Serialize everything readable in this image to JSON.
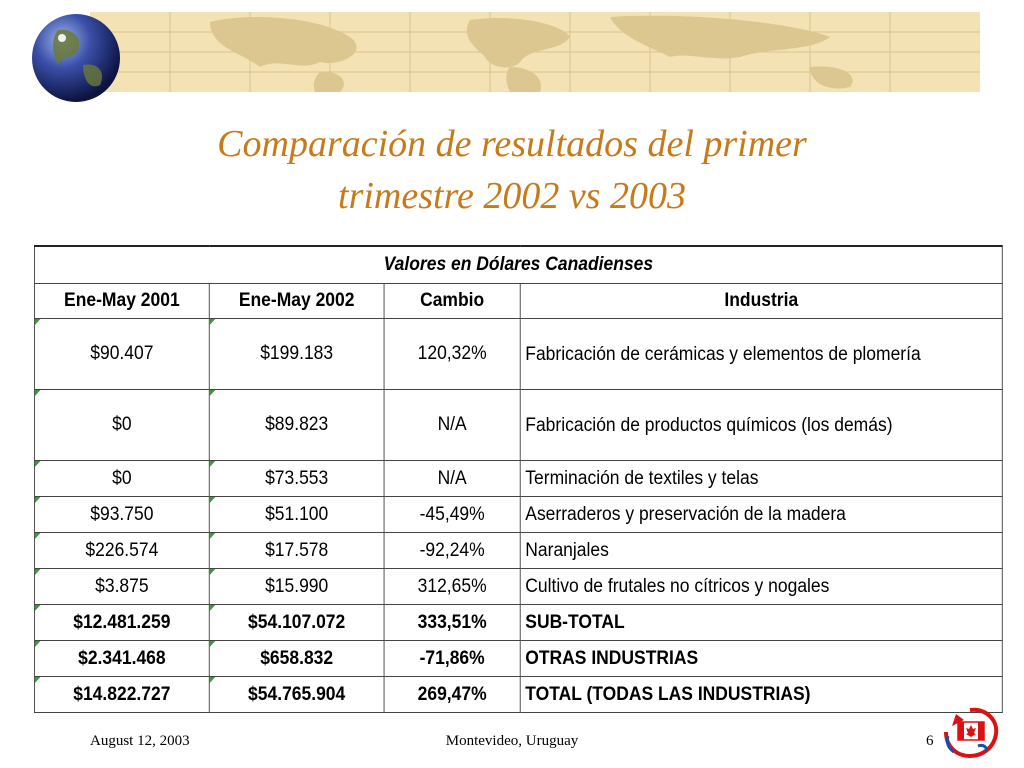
{
  "slide": {
    "title_line1": "Comparación de resultados del primer",
    "title_line2": "trimestre 2002 vs 2003",
    "accent_color": "#c77a1a"
  },
  "table": {
    "caption": "Valores en Dólares Canadienses",
    "headers": [
      "Ene-May 2001",
      "Ene-May 2002",
      "Cambio",
      "Industria"
    ],
    "rows": [
      [
        "$90.407",
        "$199.183",
        "120,32%",
        "Fabricación de cerámicas y elementos de plomería"
      ],
      [
        "$0",
        "$89.823",
        "N/A",
        "Fabricación de productos químicos (los demás)"
      ],
      [
        "$0",
        "$73.553",
        "N/A",
        "Terminación de textiles y telas"
      ],
      [
        "$93.750",
        "$51.100",
        "-45,49%",
        "Aserraderos y preservación de la madera"
      ],
      [
        "$226.574",
        "$17.578",
        "-92,24%",
        "Naranjales"
      ],
      [
        "$3.875",
        "$15.990",
        "312,65%",
        "Cultivo de frutales no cítricos y nogales"
      ],
      [
        "$12.481.259",
        "$54.107.072",
        "333,51%",
        "SUB-TOTAL"
      ],
      [
        "$2.341.468",
        "$658.832",
        "-71,86%",
        "OTRAS INDUSTRIAS"
      ],
      [
        "$14.822.727",
        "$54.765.904",
        "269,47%",
        "TOTAL (TODAS LAS INDUSTRIAS)"
      ]
    ]
  },
  "footer": {
    "date": "August 12, 2003",
    "place": "Montevideo, Uruguay",
    "page": "6"
  },
  "icons": {
    "globe": "globe-icon",
    "logo": "canada-flag-logo"
  }
}
